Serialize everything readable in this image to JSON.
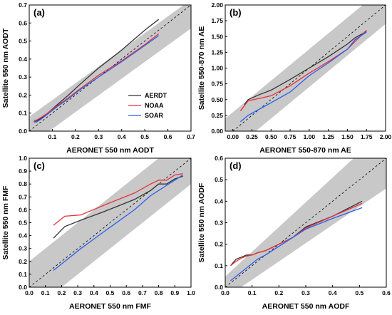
{
  "colors": {
    "AERDT": "#333333",
    "NOAA": "#e8313a",
    "SOAR": "#2b5ff0",
    "envelope": "#c8c8c8"
  },
  "legend": {
    "entries": [
      "AERDT",
      "NOAA",
      "SOAR"
    ]
  },
  "chart_data": [
    {
      "type": "line",
      "panel_label": "(a)",
      "xlabel": "AERONET 550 nm AODT",
      "ylabel": "Satellite 550 nm AODT",
      "xlim": [
        0.0,
        0.7
      ],
      "ylim": [
        0.0,
        0.7
      ],
      "xticks": [
        "0.1",
        "0.2",
        "0.3",
        "0.4",
        "0.5",
        "0.6",
        "0.7"
      ],
      "yticks": [
        "0.0",
        "0.1",
        "0.2",
        "0.3",
        "0.4",
        "0.5",
        "0.6",
        "0.7"
      ],
      "one_to_one_line": true,
      "envelope": {
        "upper": [
          [
            0.0,
            0.08
          ],
          [
            0.7,
            0.73
          ]
        ],
        "lower": [
          [
            0.0,
            -0.08
          ],
          [
            0.7,
            0.57
          ]
        ]
      },
      "legend_placement": "center-right",
      "series": [
        {
          "name": "AERDT",
          "x": [
            0.02,
            0.03,
            0.05,
            0.08,
            0.12,
            0.17,
            0.22,
            0.3,
            0.4,
            0.5,
            0.56
          ],
          "y": [
            0.05,
            0.055,
            0.07,
            0.1,
            0.145,
            0.2,
            0.26,
            0.35,
            0.45,
            0.56,
            0.62
          ]
        },
        {
          "name": "NOAA",
          "x": [
            0.02,
            0.03,
            0.05,
            0.08,
            0.12,
            0.17,
            0.22,
            0.3,
            0.4,
            0.5,
            0.56
          ],
          "y": [
            0.06,
            0.06,
            0.075,
            0.1,
            0.14,
            0.185,
            0.235,
            0.31,
            0.39,
            0.48,
            0.54
          ]
        },
        {
          "name": "SOAR",
          "x": [
            0.02,
            0.03,
            0.05,
            0.08,
            0.12,
            0.17,
            0.22,
            0.3,
            0.4,
            0.5,
            0.56
          ],
          "y": [
            0.055,
            0.05,
            0.065,
            0.095,
            0.135,
            0.18,
            0.23,
            0.3,
            0.385,
            0.475,
            0.53
          ]
        }
      ]
    },
    {
      "type": "line",
      "panel_label": "(b)",
      "xlabel": "AERONET 550-870 nm AE",
      "ylabel": "Satellite 550-870 nm AE",
      "xlim": [
        -0.1,
        2.0
      ],
      "ylim": [
        0.0,
        2.0
      ],
      "xticks": [
        "0.00",
        "0.25",
        "0.50",
        "0.75",
        "1.00",
        "1.25",
        "1.50",
        "1.75",
        "2.00"
      ],
      "yticks": [
        "0.00",
        "0.25",
        "0.50",
        "0.75",
        "1.00",
        "1.25",
        "1.50",
        "1.75",
        "2.00"
      ],
      "one_to_one_line": true,
      "envelope": {
        "upper": [
          [
            -0.1,
            0.2
          ],
          [
            2.0,
            2.3
          ]
        ],
        "lower": [
          [
            -0.1,
            -0.4
          ],
          [
            2.0,
            1.7
          ]
        ]
      },
      "series": [
        {
          "name": "AERDT",
          "x": [
            0.15,
            0.2,
            0.35,
            0.5,
            0.75,
            1.0,
            1.25,
            1.5,
            1.6,
            1.75
          ],
          "y": [
            0.42,
            0.5,
            0.58,
            0.65,
            0.82,
            1.0,
            1.18,
            1.38,
            1.48,
            1.58
          ]
        },
        {
          "name": "NOAA",
          "x": [
            0.1,
            0.2,
            0.35,
            0.5,
            0.75,
            1.0,
            1.25,
            1.5,
            1.6,
            1.75
          ],
          "y": [
            0.32,
            0.48,
            0.52,
            0.56,
            0.72,
            0.92,
            1.1,
            1.3,
            1.42,
            1.6
          ]
        },
        {
          "name": "SOAR",
          "x": [
            0.1,
            0.2,
            0.35,
            0.5,
            0.75,
            1.0,
            1.25,
            1.5,
            1.6,
            1.75
          ],
          "y": [
            0.15,
            0.25,
            0.35,
            0.45,
            0.62,
            0.88,
            1.08,
            1.3,
            1.45,
            1.57
          ]
        }
      ]
    },
    {
      "type": "line",
      "panel_label": "(c)",
      "xlabel": "AERONET 550 nm FMF",
      "ylabel": "Satellite 550 nm FMF",
      "xlim": [
        0.0,
        1.0
      ],
      "ylim": [
        0.0,
        1.0
      ],
      "xticks": [
        "0.0",
        "0.1",
        "0.2",
        "0.3",
        "0.4",
        "0.5",
        "0.6",
        "0.7",
        "0.8",
        "0.9",
        "1.0"
      ],
      "yticks": [
        "0.0",
        "0.1",
        "0.2",
        "0.3",
        "0.4",
        "0.5",
        "0.6",
        "0.7",
        "0.8",
        "0.9",
        "1.0"
      ],
      "one_to_one_line": true,
      "envelope": {
        "upper": [
          [
            0.0,
            0.2
          ],
          [
            1.0,
            1.2
          ]
        ],
        "lower": [
          [
            0.0,
            -0.2
          ],
          [
            1.0,
            0.8
          ]
        ]
      },
      "series": [
        {
          "name": "AERDT",
          "x": [
            0.15,
            0.22,
            0.32,
            0.45,
            0.55,
            0.65,
            0.75,
            0.8,
            0.85,
            0.9,
            0.95
          ],
          "y": [
            0.38,
            0.47,
            0.52,
            0.58,
            0.63,
            0.68,
            0.75,
            0.8,
            0.8,
            0.84,
            0.86
          ]
        },
        {
          "name": "NOAA",
          "x": [
            0.15,
            0.22,
            0.32,
            0.45,
            0.55,
            0.65,
            0.75,
            0.8,
            0.85,
            0.9,
            0.95
          ],
          "y": [
            0.48,
            0.55,
            0.56,
            0.63,
            0.68,
            0.73,
            0.8,
            0.83,
            0.83,
            0.87,
            0.88
          ]
        },
        {
          "name": "SOAR",
          "x": [
            0.15,
            0.22,
            0.32,
            0.45,
            0.55,
            0.65,
            0.75,
            0.8,
            0.85,
            0.9,
            0.95
          ],
          "y": [
            0.13,
            0.2,
            0.3,
            0.42,
            0.51,
            0.6,
            0.71,
            0.75,
            0.79,
            0.83,
            0.87
          ]
        }
      ]
    },
    {
      "type": "line",
      "panel_label": "(d)",
      "xlabel": "AERONET 550 nm AODF",
      "ylabel": "Satellite 550 nm AODF",
      "xlim": [
        0.0,
        0.6
      ],
      "ylim": [
        0.0,
        0.6
      ],
      "xticks": [
        "0.0",
        "0.1",
        "0.2",
        "0.3",
        "0.4",
        "0.5",
        "0.6"
      ],
      "yticks": [
        "0.0",
        "0.1",
        "0.2",
        "0.3",
        "0.4",
        "0.5",
        "0.6"
      ],
      "one_to_one_line": true,
      "envelope": {
        "upper": [
          [
            0.0,
            0.05
          ],
          [
            0.6,
            0.74
          ]
        ],
        "lower": [
          [
            0.0,
            -0.05
          ],
          [
            0.6,
            0.46
          ]
        ]
      },
      "series": [
        {
          "name": "AERDT",
          "x": [
            0.02,
            0.04,
            0.06,
            0.08,
            0.1,
            0.12,
            0.15,
            0.2,
            0.25,
            0.3,
            0.4,
            0.51
          ],
          "y": [
            0.1,
            0.13,
            0.14,
            0.15,
            0.15,
            0.16,
            0.17,
            0.2,
            0.23,
            0.28,
            0.33,
            0.4
          ]
        },
        {
          "name": "NOAA",
          "x": [
            0.02,
            0.04,
            0.06,
            0.08,
            0.1,
            0.12,
            0.15,
            0.2,
            0.25,
            0.3,
            0.4,
            0.51
          ],
          "y": [
            0.1,
            0.12,
            0.135,
            0.145,
            0.15,
            0.16,
            0.17,
            0.2,
            0.23,
            0.275,
            0.33,
            0.39
          ]
        },
        {
          "name": "SOAR",
          "x": [
            0.02,
            0.04,
            0.06,
            0.08,
            0.1,
            0.12,
            0.15,
            0.2,
            0.25,
            0.3,
            0.4,
            0.51
          ],
          "y": [
            0.03,
            0.05,
            0.07,
            0.09,
            0.11,
            0.13,
            0.15,
            0.19,
            0.23,
            0.27,
            0.32,
            0.37
          ]
        }
      ]
    }
  ]
}
